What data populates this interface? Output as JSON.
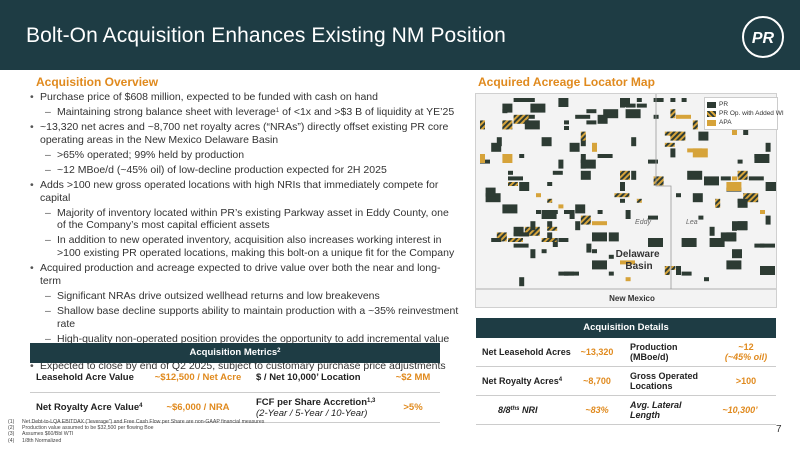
{
  "header": {
    "title": "Bolt-On Acquisition Enhances Existing NM Position",
    "logo_text": "PR"
  },
  "overview": {
    "title": "Acquisition Overview",
    "bullets": [
      {
        "level": 1,
        "text": "Purchase price of $608 million, expected to be funded with cash on hand"
      },
      {
        "level": 2,
        "text": "Maintaining strong balance sheet with leverage",
        "sup": "1",
        "text2": " of <1x and >$3 B of liquidity at YE’25"
      },
      {
        "level": 1,
        "text": "~13,320 net acres and ~8,700 net royalty acres (“NRAs”) directly offset existing PR core operating areas in the New Mexico Delaware Basin"
      },
      {
        "level": 2,
        "text": ">65% operated; 99% held by production"
      },
      {
        "level": 2,
        "text": "~12 MBoe/d (~45% oil) of low-decline production expected for 2H 2025"
      },
      {
        "level": 1,
        "text": "Adds >100 new gross operated locations with high NRIs that immediately compete for capital"
      },
      {
        "level": 2,
        "text": "Majority of inventory located within PR’s existing Parkway asset in Eddy County, one of the Company’s most capital efficient assets"
      },
      {
        "level": 2,
        "text": "In addition to new operated inventory, acquisition also increases working interest in >100 existing PR operated locations, making this bolt-on a unique fit for the Company"
      },
      {
        "level": 1,
        "text": "Acquired production and acreage expected to drive value over both the near and long-term"
      },
      {
        "level": 2,
        "text": "Significant NRAs drive outsized wellhead returns and low breakevens"
      },
      {
        "level": 2,
        "text": "Shallow base decline supports ability to maintain production with a ~35% reinvestment rate"
      },
      {
        "level": 2,
        "text": "High-quality non-operated position provides the opportunity to add incremental value via PR’s highly effective ground game"
      },
      {
        "level": 1,
        "text": "Expected to close by end of Q2 2025, subject to customary purchase price adjustments"
      }
    ]
  },
  "metrics": {
    "title": "Acquisition Metrics",
    "title_sup": "2",
    "rows": [
      {
        "label": "Leasehold Acre Value",
        "value": "~$12,500 / Net Acre",
        "label2": "$ / Net 10,000’ Location",
        "value2": "~$2 MM"
      },
      {
        "label": "Net Royalty Acre Value",
        "label_sup": "4",
        "value": "~$6,000 / NRA",
        "label2": "FCF per Share Accretion",
        "label2_sup": "1,3",
        "label2_sub": "(2-Year / 5-Year / 10-Year)",
        "value2": ">5%"
      }
    ]
  },
  "map": {
    "title": "Acquired Acreage Locator Map",
    "legend": [
      {
        "name": "PR",
        "color": "#2d3b33"
      },
      {
        "name": "PR Op. with Added WI",
        "color": "#d6a33a"
      },
      {
        "name": "APA",
        "color": "#d6a33a"
      }
    ],
    "county_eddy": "Eddy",
    "county_lea": "Lea",
    "basin": "Delaware Basin",
    "state": "New Mexico"
  },
  "details": {
    "title": "Acquisition Details",
    "rows": [
      {
        "label": "Net Leasehold Acres",
        "value": "~13,320",
        "label2": "Production (MBoe/d)",
        "value2": "~12",
        "value2_sub": "(~45% oil)"
      },
      {
        "label": "Net Royalty Acres",
        "label_sup": "4",
        "value": "~8,700",
        "label2": "Gross Operated Locations",
        "value2": ">100"
      },
      {
        "label": "8/8",
        "label_sup": "ths",
        "label_tail": " NRI",
        "value": "~83%",
        "label2": "Avg. Lateral Length",
        "value2": "~10,300’"
      }
    ]
  },
  "footnotes": [
    {
      "n": "(1)",
      "text": "Net Debt-to-LQA EBITDAX (“leverage”) and Free Cash Flow per Share are non-GAAP financial measures"
    },
    {
      "n": "(2)",
      "text": "Production value assumed to be $32,500 per flowing Boe"
    },
    {
      "n": "(3)",
      "text": "Assumes $60/Bbl WTI"
    },
    {
      "n": "(4)",
      "text": "1/8th Normalized"
    }
  ],
  "page_number": "7"
}
